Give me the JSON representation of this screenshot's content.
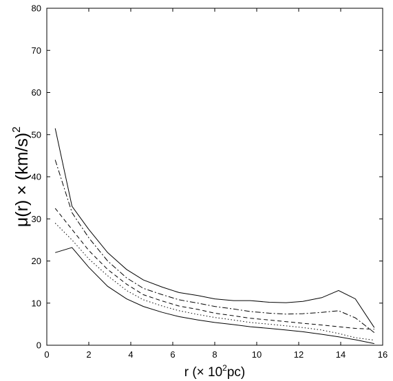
{
  "chart_data": {
    "type": "line",
    "xlabel": {
      "pre": "r (× 10",
      "sup": "2",
      "post": "pc)"
    },
    "ylabel": {
      "pre": "μ(r) × (km/s)",
      "sup": "2"
    },
    "xlim": [
      0,
      16
    ],
    "ylim": [
      0,
      80
    ],
    "xticks": [
      0,
      2,
      4,
      6,
      8,
      10,
      12,
      14,
      16
    ],
    "yticks": [
      0,
      10,
      20,
      30,
      40,
      50,
      60,
      70,
      80
    ],
    "grid": false,
    "legend": "none",
    "x": [
      0.4,
      1.2,
      2.0,
      2.9,
      3.8,
      4.6,
      5.5,
      6.3,
      7.2,
      8.0,
      8.9,
      9.7,
      10.6,
      11.4,
      12.2,
      13.1,
      13.9,
      14.7,
      15.6
    ],
    "series": [
      {
        "style": "solid",
        "values": [
          51.5,
          33.0,
          27.5,
          22.0,
          18.0,
          15.5,
          13.8,
          12.5,
          11.8,
          11.0,
          10.6,
          10.6,
          10.2,
          10.1,
          10.4,
          11.3,
          13.0,
          11.0,
          4.2
        ]
      },
      {
        "style": "dashdot",
        "values": [
          44.0,
          31.5,
          25.5,
          20.0,
          16.0,
          13.5,
          12.0,
          10.8,
          10.0,
          9.2,
          8.6,
          8.0,
          7.6,
          7.4,
          7.5,
          7.8,
          8.2,
          6.5,
          3.0
        ]
      },
      {
        "style": "dashed",
        "values": [
          32.5,
          27.5,
          22.5,
          18.0,
          14.5,
          12.0,
          10.5,
          9.3,
          8.5,
          7.6,
          7.0,
          6.4,
          6.0,
          5.6,
          5.2,
          4.8,
          4.4,
          4.0,
          3.8
        ]
      },
      {
        "style": "dotted",
        "values": [
          29.0,
          25.0,
          20.5,
          16.5,
          13.0,
          10.8,
          9.3,
          8.2,
          7.3,
          6.6,
          6.0,
          5.4,
          5.0,
          4.6,
          4.2,
          3.6,
          2.8,
          1.8,
          1.2
        ]
      },
      {
        "style": "solid",
        "values": [
          22.0,
          23.2,
          18.5,
          14.0,
          11.0,
          9.2,
          7.8,
          6.8,
          6.0,
          5.4,
          4.9,
          4.4,
          4.0,
          3.6,
          3.2,
          2.6,
          2.0,
          1.3,
          0.4
        ]
      }
    ]
  }
}
